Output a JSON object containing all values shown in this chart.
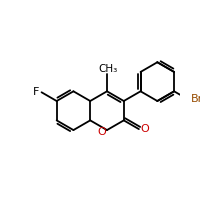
{
  "bg_color": "#ffffff",
  "bond_color": "#000000",
  "bond_lw": 1.3,
  "O_color": "#cc0000",
  "Br_color": "#964B00",
  "F_color": "#000000",
  "figsize": [
    2.0,
    2.0
  ],
  "dpi": 100,
  "xlim": [
    -2.5,
    5.5
  ],
  "ylim": [
    -2.2,
    3.2
  ]
}
